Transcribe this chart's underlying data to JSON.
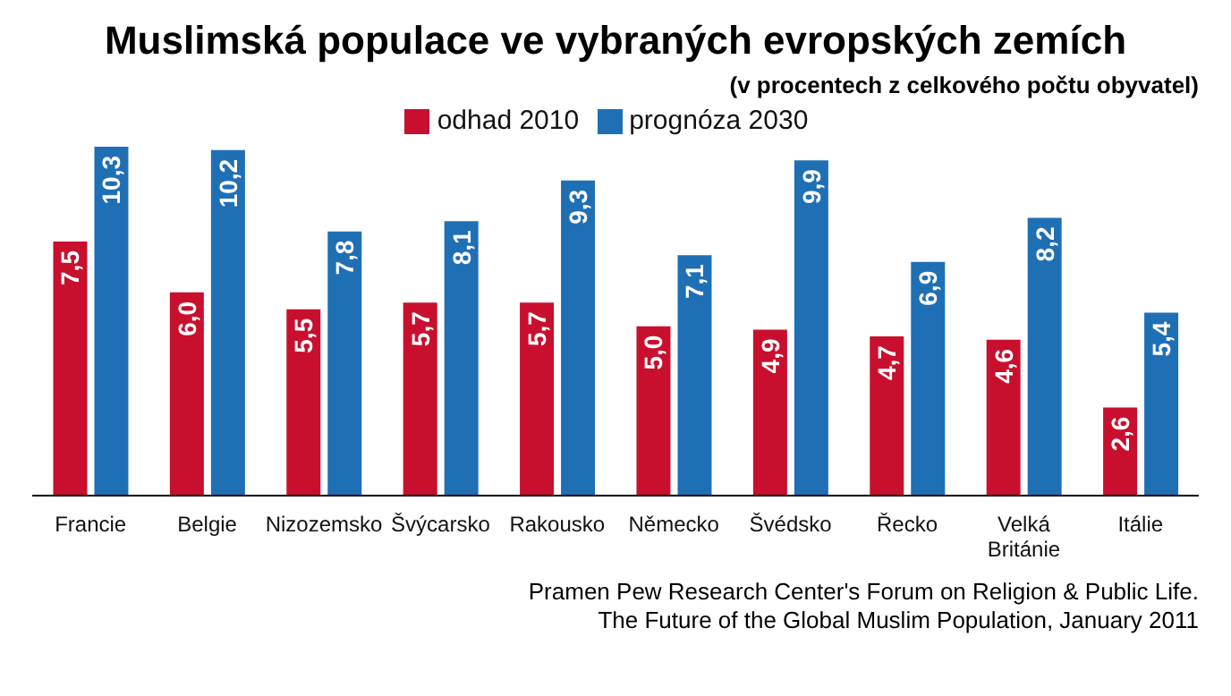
{
  "chart_data": {
    "type": "bar",
    "title": "Muslimská populace ve vybraných evropských zemích",
    "subtitle": "(v procentech z celkového počtu obyvatel)",
    "categories": [
      "Francie",
      "Belgie",
      "Nizozemsko",
      "Švýcarsko",
      "Rakousko",
      "Německo",
      "Švédsko",
      "Řecko",
      "Velká Británie",
      "Itálie"
    ],
    "series": [
      {
        "name": "odhad 2010",
        "color": "#c8102e",
        "values": [
          7.5,
          6.0,
          5.5,
          5.7,
          5.7,
          5.0,
          4.9,
          4.7,
          4.6,
          2.6
        ],
        "value_labels": [
          "7,5",
          "6,0",
          "5,5",
          "5,7",
          "5,7",
          "5,0",
          "4,9",
          "4,7",
          "4,6",
          "2,6"
        ]
      },
      {
        "name": "prognóza 2030",
        "color": "#1f6fb5",
        "values": [
          10.3,
          10.2,
          7.8,
          8.1,
          9.3,
          7.1,
          9.9,
          6.9,
          8.2,
          5.4
        ],
        "value_labels": [
          "10,3",
          "10,2",
          "7,8",
          "8,1",
          "9,3",
          "7,1",
          "9,9",
          "6,9",
          "8,2",
          "5,4"
        ]
      }
    ],
    "legend": "top",
    "grid": false,
    "annotations": [
      "Pramen Pew Research Center's Forum on Religion & Public Life.",
      "The Future of the Global Muslim Population, January 2011"
    ]
  }
}
